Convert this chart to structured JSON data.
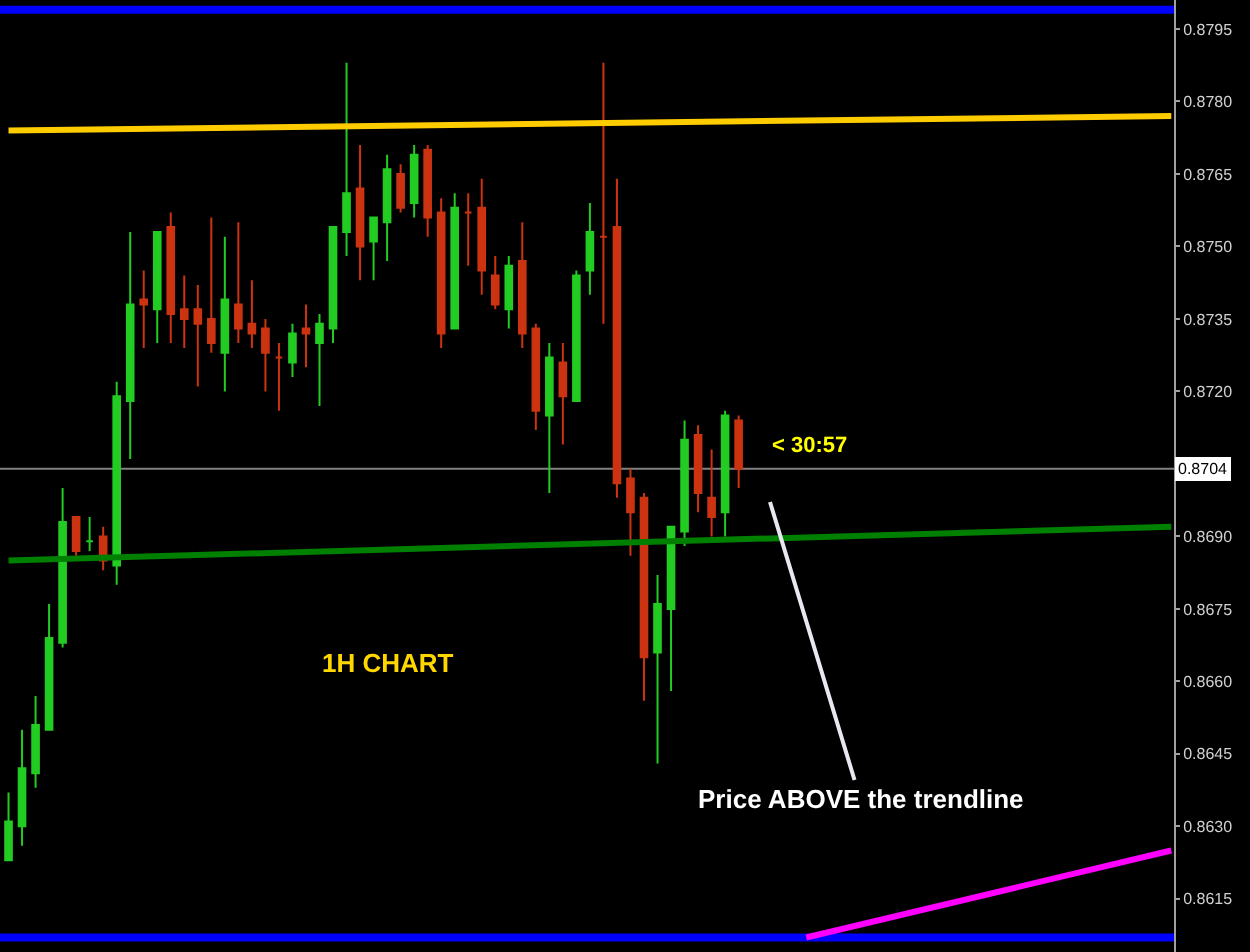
{
  "chart_data": {
    "type": "candlestick",
    "categories": [
      null,
      null,
      null,
      null,
      null,
      null,
      null,
      null,
      null,
      null,
      null,
      null,
      null,
      null,
      null,
      null,
      null,
      null,
      null,
      null,
      null,
      null,
      null,
      null,
      null,
      null,
      null,
      null,
      null,
      null,
      null,
      null,
      null,
      null,
      null,
      null,
      null,
      null,
      null,
      null,
      null,
      null,
      null,
      null,
      null,
      null,
      null,
      null,
      null,
      null,
      null,
      null,
      null,
      null,
      null,
      null,
      null,
      null,
      null,
      null,
      null,
      null,
      null,
      null,
      null,
      null,
      null,
      null,
      null,
      null,
      null,
      null,
      null,
      null,
      null,
      null,
      null,
      null,
      null,
      null,
      null,
      null,
      null,
      null,
      null,
      null,
      null
    ],
    "ohlc": [
      [
        0.8623,
        0.8637,
        0.8623,
        0.8631
      ],
      [
        0.863,
        0.865,
        0.8626,
        0.8642
      ],
      [
        0.8641,
        0.8657,
        0.8638,
        0.8651
      ],
      [
        0.865,
        0.8676,
        0.865,
        0.8669
      ],
      [
        0.8668,
        0.87,
        0.8667,
        0.8693
      ],
      [
        0.8694,
        0.8694,
        0.8686,
        0.8687
      ],
      [
        0.8689,
        0.8694,
        0.8687,
        0.8689
      ],
      [
        0.869,
        0.8692,
        0.8683,
        0.8685
      ],
      [
        0.8684,
        0.8722,
        0.868,
        0.8719
      ],
      [
        0.8718,
        0.8753,
        0.8706,
        0.8738
      ],
      [
        0.8739,
        0.8745,
        0.8729,
        0.8738
      ],
      [
        0.8737,
        0.8753,
        0.873,
        0.8753
      ],
      [
        0.8754,
        0.8757,
        0.873,
        0.8736
      ],
      [
        0.8737,
        0.8744,
        0.8729,
        0.8735
      ],
      [
        0.8737,
        0.8742,
        0.8721,
        0.8734
      ],
      [
        0.8735,
        0.8756,
        0.8728,
        0.873
      ],
      [
        0.8728,
        0.8752,
        0.872,
        0.8739
      ],
      [
        0.8738,
        0.8755,
        0.873,
        0.8733
      ],
      [
        0.8734,
        0.8743,
        0.8729,
        0.8732
      ],
      [
        0.8733,
        0.8735,
        0.872,
        0.8728
      ],
      [
        0.8727,
        0.873,
        0.8716,
        0.8727
      ],
      [
        0.8726,
        0.8734,
        0.8723,
        0.8732
      ],
      [
        0.8733,
        0.8738,
        0.8725,
        0.8732
      ],
      [
        0.873,
        0.8736,
        0.8717,
        0.8734
      ],
      [
        0.8733,
        0.8754,
        0.873,
        0.8754
      ],
      [
        0.8753,
        0.8788,
        0.8748,
        0.8761
      ],
      [
        0.8762,
        0.8771,
        0.8743,
        0.875
      ],
      [
        0.8751,
        0.8756,
        0.8743,
        0.8756
      ],
      [
        0.8755,
        0.8769,
        0.8747,
        0.8766
      ],
      [
        0.8765,
        0.8767,
        0.8757,
        0.8758
      ],
      [
        0.8759,
        0.8771,
        0.8756,
        0.8769
      ],
      [
        0.877,
        0.8771,
        0.8752,
        0.8756
      ],
      [
        0.8757,
        0.876,
        0.8729,
        0.8732
      ],
      [
        0.8733,
        0.8761,
        0.8733,
        0.8758
      ],
      [
        0.8757,
        0.8761,
        0.8746,
        0.8757
      ],
      [
        0.8758,
        0.8764,
        0.874,
        0.8745
      ],
      [
        0.8744,
        0.8748,
        0.8737,
        0.8738
      ],
      [
        0.8737,
        0.8748,
        0.8733,
        0.8746
      ],
      [
        0.8747,
        0.8755,
        0.8729,
        0.8732
      ],
      [
        0.8733,
        0.8734,
        0.8712,
        0.8716
      ],
      [
        0.8715,
        0.873,
        0.8699,
        0.8727
      ],
      [
        0.8726,
        0.873,
        0.8709,
        0.8719
      ],
      [
        0.8718,
        0.8745,
        0.8718,
        0.8744
      ],
      [
        0.8745,
        0.8759,
        0.874,
        0.8753
      ],
      [
        0.8752,
        0.8788,
        0.8734,
        0.8752
      ],
      [
        0.8754,
        0.8764,
        0.8698,
        0.8701
      ],
      [
        0.8702,
        0.8704,
        0.8686,
        0.8695
      ],
      [
        0.8698,
        0.8699,
        0.8656,
        0.8665
      ],
      [
        0.8666,
        0.8682,
        0.8643,
        0.8676
      ],
      [
        0.8675,
        0.8692,
        0.8658,
        0.8692
      ],
      [
        0.8691,
        0.8714,
        0.8688,
        0.871
      ],
      [
        0.8711,
        0.8713,
        0.8695,
        0.8699
      ],
      [
        0.8698,
        0.8708,
        0.869,
        0.8694
      ],
      [
        0.8695,
        0.8716,
        0.869,
        0.8715
      ],
      [
        0.8714,
        0.8715,
        0.87,
        0.8704
      ],
      null,
      null,
      null,
      null,
      null,
      null,
      null,
      null,
      null,
      null,
      null,
      null,
      null,
      null,
      null,
      null,
      null,
      null,
      null,
      null,
      null,
      null,
      null,
      null,
      null,
      null,
      null,
      null,
      null,
      null,
      null,
      null
    ],
    "series": [
      {
        "type": "line",
        "color": "#ffcc00",
        "values": [
          0.8774,
          null,
          null,
          null,
          null,
          null,
          null,
          null,
          null,
          null,
          null,
          null,
          null,
          null,
          null,
          null,
          null,
          null,
          null,
          null,
          null,
          null,
          null,
          null,
          null,
          null,
          null,
          null,
          null,
          null,
          null,
          null,
          null,
          null,
          null,
          null,
          null,
          null,
          null,
          null,
          null,
          null,
          null,
          null,
          null,
          null,
          null,
          null,
          null,
          null,
          null,
          null,
          null,
          null,
          null,
          null,
          null,
          null,
          null,
          null,
          null,
          null,
          null,
          null,
          null,
          null,
          null,
          null,
          null,
          null,
          null,
          null,
          null,
          null,
          null,
          null,
          null,
          null,
          null,
          null,
          null,
          null,
          null,
          null,
          null,
          null,
          0.8777
        ]
      },
      {
        "type": "line",
        "color": "#008000",
        "values": [
          0.8685,
          null,
          null,
          null,
          null,
          null,
          null,
          null,
          null,
          null,
          null,
          null,
          null,
          null,
          null,
          null,
          null,
          null,
          null,
          null,
          null,
          null,
          null,
          null,
          null,
          null,
          null,
          null,
          null,
          null,
          null,
          null,
          null,
          null,
          null,
          null,
          null,
          null,
          null,
          null,
          null,
          null,
          null,
          null,
          null,
          null,
          null,
          null,
          null,
          null,
          null,
          null,
          null,
          null,
          null,
          null,
          null,
          null,
          null,
          null,
          null,
          null,
          null,
          null,
          null,
          null,
          null,
          null,
          null,
          null,
          null,
          null,
          null,
          null,
          null,
          null,
          null,
          null,
          null,
          null,
          null,
          null,
          null,
          null,
          null,
          null,
          0.8692
        ]
      },
      {
        "type": "line",
        "color": "#ff00ff",
        "values": [
          null,
          null,
          null,
          null,
          null,
          null,
          null,
          null,
          null,
          null,
          null,
          null,
          null,
          null,
          null,
          null,
          null,
          null,
          null,
          null,
          null,
          null,
          null,
          null,
          null,
          null,
          null,
          null,
          null,
          null,
          null,
          null,
          null,
          null,
          null,
          null,
          null,
          null,
          null,
          null,
          null,
          null,
          null,
          null,
          null,
          null,
          null,
          null,
          null,
          null,
          null,
          null,
          null,
          null,
          null,
          null,
          null,
          null,
          null,
          0.8607,
          null,
          null,
          null,
          null,
          null,
          null,
          null,
          null,
          null,
          null,
          null,
          null,
          null,
          null,
          null,
          null,
          null,
          null,
          null,
          null,
          null,
          null,
          null,
          null,
          null,
          null,
          0.8625
        ]
      }
    ],
    "ref_lines": [
      {
        "axis": "y",
        "value": 0.8799,
        "color": "#0000ff"
      },
      {
        "axis": "y",
        "value": 0.8607,
        "color": "#0000ff"
      },
      {
        "axis": "y",
        "value": 0.8704,
        "color": "#808080",
        "label": "0.8704"
      }
    ],
    "ylim": [
      0.8604,
      0.8801
    ],
    "yticks": [
      0.8615,
      {
        "value": 0.863,
        "label": "0.8630"
      },
      0.8645,
      {
        "value": 0.866,
        "label": "0.8660"
      },
      0.8675,
      {
        "value": 0.869,
        "label": "0.8690"
      },
      {
        "value": 0.872,
        "label": "0.8720"
      },
      0.8735,
      {
        "value": 0.875,
        "label": "0.8750"
      },
      0.8765,
      {
        "value": 0.878,
        "label": "0.8780"
      },
      0.8795
    ],
    "tick_labels": "y",
    "annotations": [
      "1H CHART",
      "< 30:57",
      "Price ABOVE the trendline"
    ],
    "grid": false
  }
}
